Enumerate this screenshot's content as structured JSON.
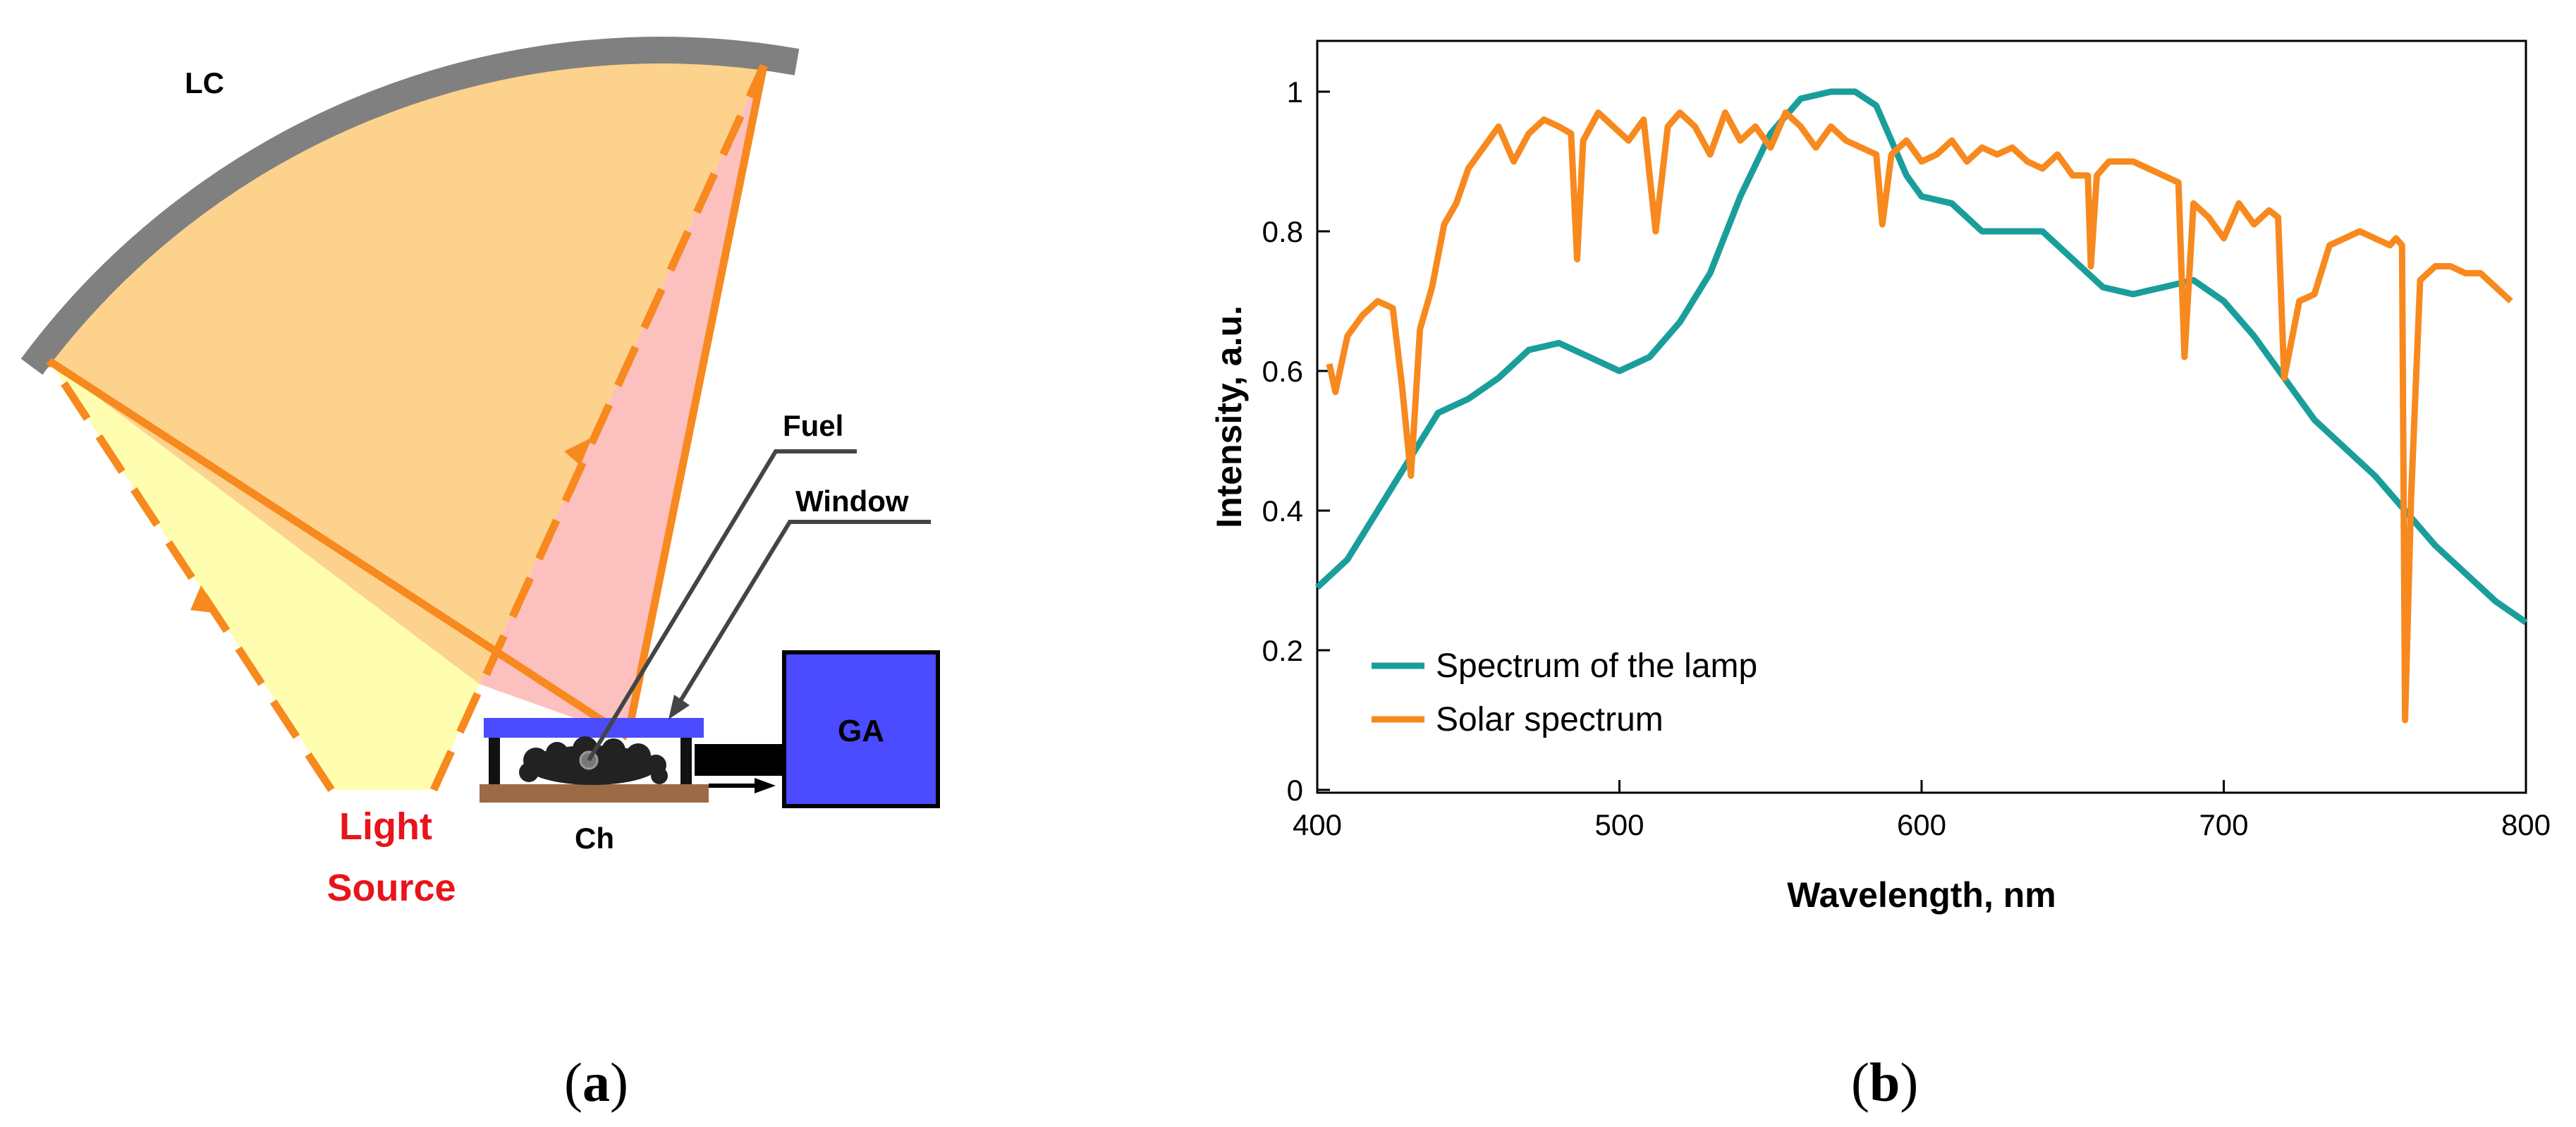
{
  "panel_a": {
    "labels": {
      "lc": "LC",
      "fuel": "Fuel",
      "window": "Window",
      "ga": "GA",
      "ch": "Ch",
      "light": "Light",
      "source": "Source"
    },
    "colors": {
      "mirror": "#808080",
      "orange": "#f7891e",
      "yellow_fill": "#fffdb0",
      "peach_fill": "#fdd28c",
      "pink_fill": "#fcc0be",
      "window": "#4b4bff",
      "ga_box": "#4b4bff",
      "base": "#9c6b45",
      "red_text": "#e8141b"
    }
  },
  "panel_b": {
    "caption_letter": "b"
  },
  "panel_a_caption_letter": "a",
  "chart_data": {
    "type": "line",
    "title": "",
    "xlabel": "Wavelength, nm",
    "ylabel": "Intensity, a.u.",
    "xlim": [
      400,
      800
    ],
    "ylim": [
      0,
      1.05
    ],
    "xticks": [
      400,
      500,
      600,
      700,
      800
    ],
    "yticks": [
      0,
      0.2,
      0.4,
      0.6,
      0.8,
      1
    ],
    "ytick_labels": [
      "0",
      "0.2",
      "0.4",
      "0.6",
      "0.8",
      "1"
    ],
    "xtick_labels": [
      "400",
      "500",
      "600",
      "700",
      "800"
    ],
    "legend_position": "bottom-left",
    "series": [
      {
        "name": "Spectrum of the lamp",
        "color": "#1a9e9b",
        "x": [
          400,
          410,
          420,
          430,
          440,
          450,
          460,
          470,
          480,
          490,
          500,
          510,
          520,
          530,
          540,
          550,
          560,
          570,
          578,
          585,
          590,
          595,
          600,
          610,
          620,
          630,
          640,
          650,
          660,
          670,
          680,
          690,
          700,
          710,
          720,
          730,
          740,
          750,
          760,
          770,
          780,
          790,
          800
        ],
        "y": [
          0.29,
          0.33,
          0.4,
          0.47,
          0.54,
          0.56,
          0.59,
          0.63,
          0.64,
          0.62,
          0.6,
          0.62,
          0.67,
          0.74,
          0.85,
          0.94,
          0.99,
          1.0,
          1.0,
          0.98,
          0.93,
          0.88,
          0.85,
          0.84,
          0.8,
          0.8,
          0.8,
          0.76,
          0.72,
          0.71,
          0.72,
          0.73,
          0.7,
          0.65,
          0.59,
          0.53,
          0.49,
          0.45,
          0.4,
          0.35,
          0.31,
          0.27,
          0.24
        ]
      },
      {
        "name": "Solar spectrum",
        "color": "#f7891e",
        "x": [
          404,
          406,
          410,
          415,
          420,
          425,
          428,
          431,
          434,
          438,
          442,
          446,
          450,
          455,
          460,
          465,
          470,
          475,
          480,
          484,
          486,
          488,
          493,
          498,
          503,
          508,
          512,
          516,
          520,
          525,
          530,
          535,
          540,
          545,
          550,
          555,
          560,
          565,
          570,
          575,
          580,
          585,
          587,
          590,
          595,
          600,
          605,
          610,
          615,
          620,
          625,
          630,
          635,
          640,
          645,
          650,
          655,
          656,
          658,
          662,
          670,
          680,
          685,
          687,
          690,
          695,
          700,
          705,
          710,
          715,
          718,
          720,
          725,
          730,
          735,
          740,
          745,
          750,
          755,
          757,
          759,
          760,
          762,
          765,
          770,
          775,
          780,
          785,
          790,
          795
        ],
        "y": [
          0.61,
          0.57,
          0.65,
          0.68,
          0.7,
          0.69,
          0.58,
          0.45,
          0.66,
          0.72,
          0.81,
          0.84,
          0.89,
          0.92,
          0.95,
          0.9,
          0.94,
          0.96,
          0.95,
          0.94,
          0.76,
          0.93,
          0.97,
          0.95,
          0.93,
          0.96,
          0.8,
          0.95,
          0.97,
          0.95,
          0.91,
          0.97,
          0.93,
          0.95,
          0.92,
          0.97,
          0.95,
          0.92,
          0.95,
          0.93,
          0.92,
          0.91,
          0.81,
          0.91,
          0.93,
          0.9,
          0.91,
          0.93,
          0.9,
          0.92,
          0.91,
          0.92,
          0.9,
          0.89,
          0.91,
          0.88,
          0.88,
          0.75,
          0.88,
          0.9,
          0.9,
          0.88,
          0.87,
          0.62,
          0.84,
          0.82,
          0.79,
          0.84,
          0.81,
          0.83,
          0.82,
          0.59,
          0.7,
          0.71,
          0.78,
          0.79,
          0.8,
          0.79,
          0.78,
          0.79,
          0.78,
          0.1,
          0.42,
          0.73,
          0.75,
          0.75,
          0.74,
          0.74,
          0.72,
          0.7
        ]
      }
    ]
  }
}
